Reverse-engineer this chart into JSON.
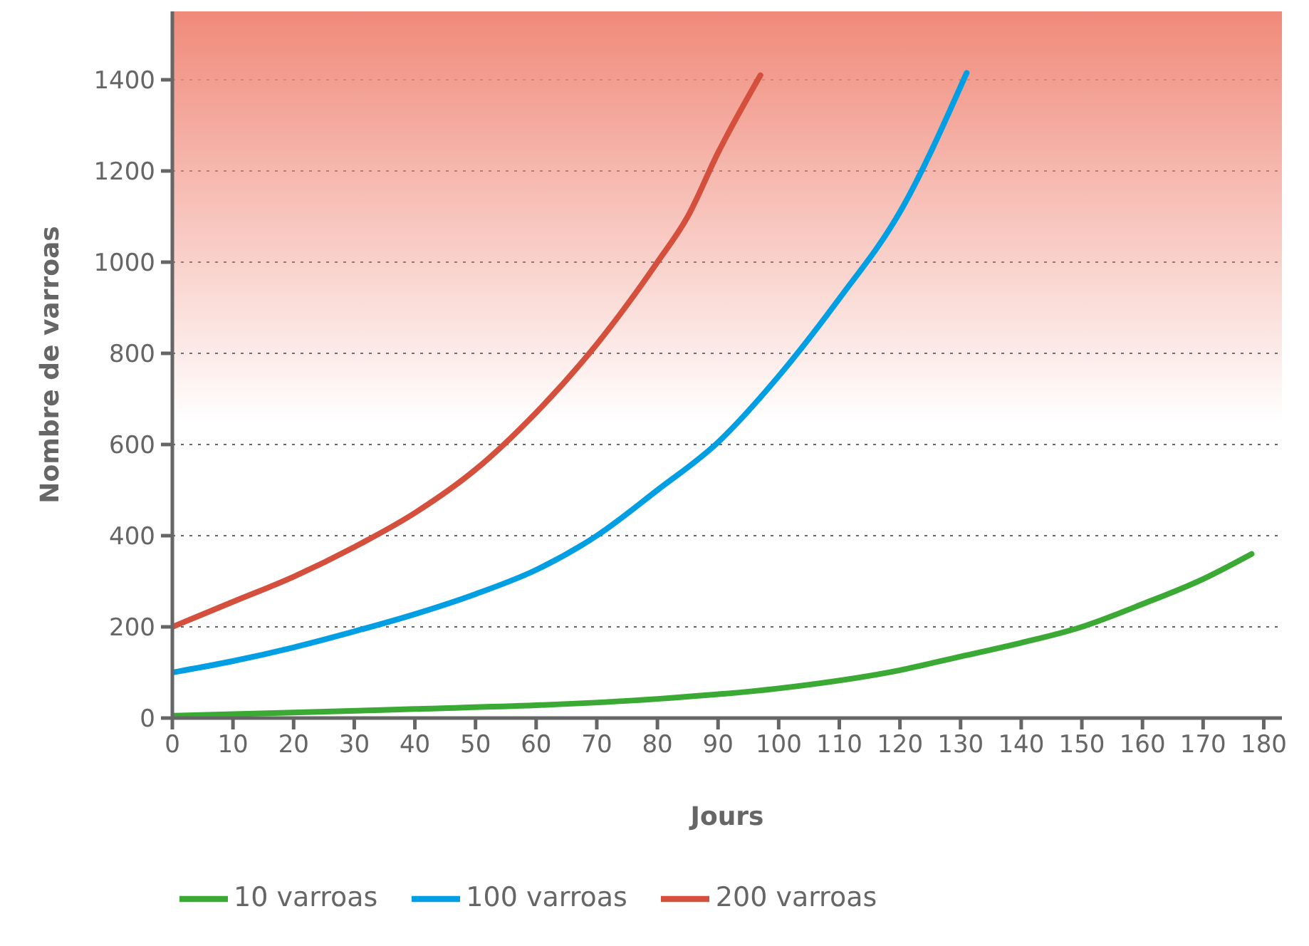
{
  "chart_data": {
    "type": "line",
    "xlabel": "Jours",
    "ylabel": "Nombre de varroas",
    "xlim": [
      0,
      183
    ],
    "xticks": [
      0,
      10,
      20,
      30,
      40,
      50,
      60,
      70,
      80,
      90,
      100,
      110,
      120,
      130,
      140,
      150,
      160,
      170,
      180
    ],
    "ylim": [
      0,
      1550
    ],
    "yticks": [
      0,
      200,
      400,
      600,
      800,
      1000,
      1200,
      1400
    ],
    "grid": "y",
    "legend": "bottom left",
    "marker": "none",
    "line_style": "solid",
    "bands": [
      {
        "axis": "y",
        "from": 650,
        "to": 1550,
        "color": "#f08a7a"
      }
    ],
    "series": [
      {
        "name": "10 varroas",
        "color": "#3aaa35",
        "x": [
          0,
          20,
          40,
          60,
          80,
          100,
          120,
          130,
          140,
          150,
          160,
          170,
          178
        ],
        "values": [
          5,
          12,
          20,
          28,
          42,
          65,
          105,
          135,
          165,
          200,
          250,
          305,
          360
        ]
      },
      {
        "name": "100 varroas",
        "color": "#009fe3",
        "x": [
          0,
          10,
          20,
          30,
          40,
          50,
          60,
          70,
          80,
          90,
          100,
          110,
          120,
          131
        ],
        "values": [
          100,
          125,
          155,
          190,
          228,
          272,
          325,
          400,
          500,
          605,
          750,
          920,
          1110,
          1415
        ]
      },
      {
        "name": "200 varroas",
        "color": "#d4503c",
        "x": [
          0,
          10,
          20,
          30,
          40,
          50,
          60,
          70,
          80,
          85,
          90,
          97
        ],
        "values": [
          200,
          255,
          310,
          375,
          450,
          545,
          670,
          820,
          1000,
          1100,
          1240,
          1410
        ]
      }
    ]
  }
}
